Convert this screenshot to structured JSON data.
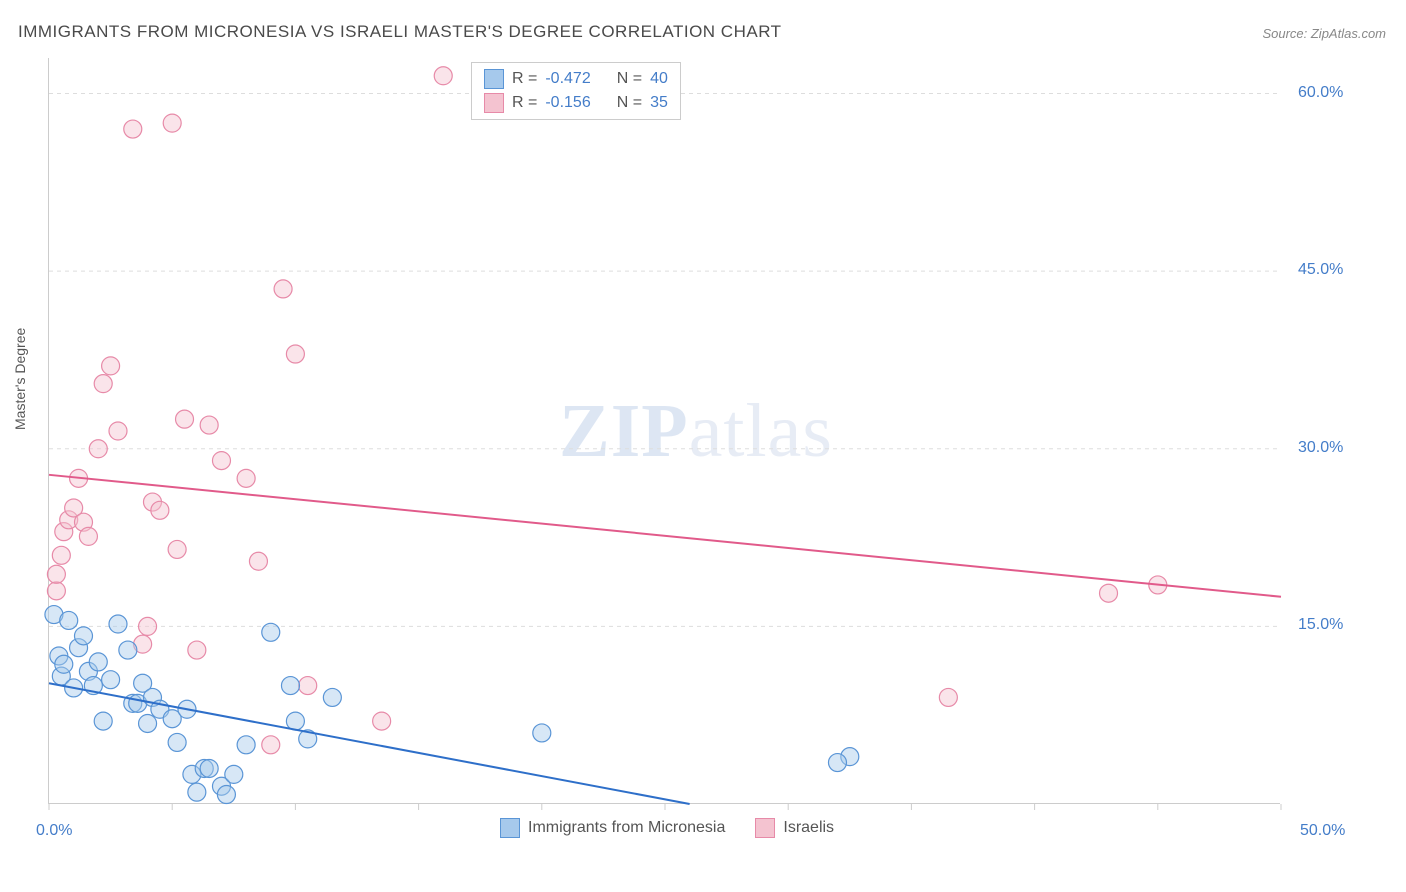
{
  "title": "IMMIGRANTS FROM MICRONESIA VS ISRAELI MASTER'S DEGREE CORRELATION CHART",
  "source": "Source: ZipAtlas.com",
  "ylabel": "Master's Degree",
  "watermark": {
    "bold": "ZIP",
    "rest": "atlas"
  },
  "chart": {
    "type": "scatter",
    "background_color": "#ffffff",
    "grid_color": "#dddddd",
    "axis_color": "#cccccc",
    "tick_label_color": "#447dc9",
    "tick_fontsize": 16,
    "title_fontsize": 17,
    "label_fontsize": 14,
    "xlim": [
      0,
      50
    ],
    "ylim": [
      0,
      63
    ],
    "y_ticks": [
      15,
      30,
      45,
      60
    ],
    "y_tick_labels": [
      "15.0%",
      "30.0%",
      "45.0%",
      "60.0%"
    ],
    "x_tick_positions": [
      0,
      5,
      10,
      15,
      20,
      25,
      30,
      35,
      40,
      45,
      50
    ],
    "x_start_label": "0.0%",
    "x_end_label": "50.0%",
    "marker_radius": 9,
    "marker_opacity": 0.45,
    "line_width": 2,
    "series": [
      {
        "name": "Immigrants from Micronesia",
        "color_fill": "#a6c9ec",
        "color_stroke": "#5a95d6",
        "line_color": "#2e6fc9",
        "R": "-0.472",
        "N": "40",
        "trend": {
          "x1": 0,
          "y1": 10.2,
          "x2": 26,
          "y2": 0
        },
        "points": [
          [
            0.2,
            16.0
          ],
          [
            0.4,
            12.5
          ],
          [
            0.5,
            10.8
          ],
          [
            0.6,
            11.8
          ],
          [
            0.8,
            15.5
          ],
          [
            1.0,
            9.8
          ],
          [
            1.2,
            13.2
          ],
          [
            1.4,
            14.2
          ],
          [
            1.6,
            11.2
          ],
          [
            1.8,
            10.0
          ],
          [
            2.0,
            12.0
          ],
          [
            2.2,
            7.0
          ],
          [
            2.5,
            10.5
          ],
          [
            2.8,
            15.2
          ],
          [
            3.2,
            13.0
          ],
          [
            3.4,
            8.5
          ],
          [
            3.6,
            8.5
          ],
          [
            3.8,
            10.2
          ],
          [
            4.0,
            6.8
          ],
          [
            4.2,
            9.0
          ],
          [
            4.5,
            8.0
          ],
          [
            5.0,
            7.2
          ],
          [
            5.2,
            5.2
          ],
          [
            5.6,
            8.0
          ],
          [
            5.8,
            2.5
          ],
          [
            6.0,
            1.0
          ],
          [
            6.3,
            3.0
          ],
          [
            6.5,
            3.0
          ],
          [
            7.0,
            1.5
          ],
          [
            7.2,
            0.8
          ],
          [
            7.5,
            2.5
          ],
          [
            8.0,
            5.0
          ],
          [
            9.0,
            14.5
          ],
          [
            9.8,
            10.0
          ],
          [
            10.0,
            7.0
          ],
          [
            10.5,
            5.5
          ],
          [
            11.5,
            9.0
          ],
          [
            20.0,
            6.0
          ],
          [
            32.5,
            4.0
          ],
          [
            32.0,
            3.5
          ]
        ]
      },
      {
        "name": "Israelis",
        "color_fill": "#f4c3d0",
        "color_stroke": "#e78aa8",
        "line_color": "#e15a8a",
        "R": "-0.156",
        "N": "35",
        "trend": {
          "x1": 0,
          "y1": 27.8,
          "x2": 50,
          "y2": 17.5
        },
        "points": [
          [
            0.3,
            18.0
          ],
          [
            0.3,
            19.4
          ],
          [
            0.5,
            21.0
          ],
          [
            0.6,
            23.0
          ],
          [
            0.8,
            24.0
          ],
          [
            1.0,
            25.0
          ],
          [
            1.2,
            27.5
          ],
          [
            1.4,
            23.8
          ],
          [
            1.6,
            22.6
          ],
          [
            2.0,
            30.0
          ],
          [
            2.2,
            35.5
          ],
          [
            2.5,
            37.0
          ],
          [
            2.8,
            31.5
          ],
          [
            3.4,
            57.0
          ],
          [
            4.0,
            15.0
          ],
          [
            4.2,
            25.5
          ],
          [
            4.5,
            24.8
          ],
          [
            5.0,
            57.5
          ],
          [
            5.2,
            21.5
          ],
          [
            5.5,
            32.5
          ],
          [
            6.0,
            13.0
          ],
          [
            6.5,
            32.0
          ],
          [
            7.0,
            29.0
          ],
          [
            8.0,
            27.5
          ],
          [
            8.5,
            20.5
          ],
          [
            9.5,
            43.5
          ],
          [
            10.0,
            38.0
          ],
          [
            10.5,
            10.0
          ],
          [
            13.5,
            7.0
          ],
          [
            16.0,
            61.5
          ],
          [
            36.5,
            9.0
          ],
          [
            43.0,
            17.8
          ],
          [
            45.0,
            18.5
          ],
          [
            9.0,
            5.0
          ],
          [
            3.8,
            13.5
          ]
        ]
      }
    ]
  },
  "legend_top": {
    "r_label": "R =",
    "n_label": "N ="
  },
  "legend_bottom": {
    "items": [
      {
        "label": "Immigrants from Micronesia",
        "fill": "#a6c9ec",
        "stroke": "#5a95d6"
      },
      {
        "label": "Israelis",
        "fill": "#f4c3d0",
        "stroke": "#e78aa8"
      }
    ]
  }
}
